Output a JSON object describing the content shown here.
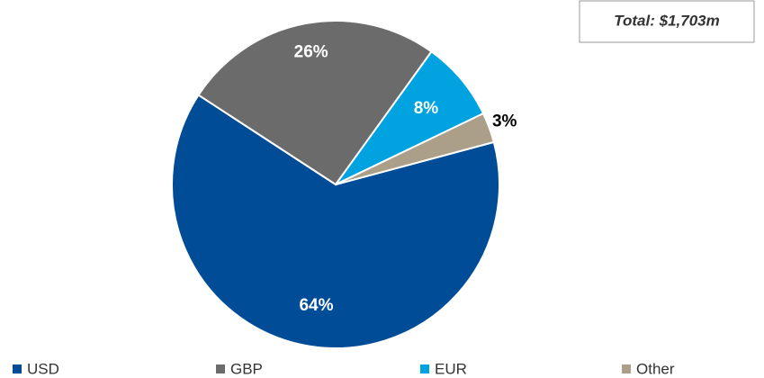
{
  "chart_data": {
    "type": "pie",
    "annotation": "Total: $1,703m",
    "categories": [
      "USD",
      "GBP",
      "EUR",
      "Other"
    ],
    "values": [
      64,
      26,
      8,
      3
    ],
    "value_labels": [
      "64%",
      "26%",
      "8%",
      "3%"
    ],
    "colors": [
      "#004c97",
      "#6b6b6b",
      "#00a3e0",
      "#ab9f89"
    ],
    "legend": "bottom"
  }
}
